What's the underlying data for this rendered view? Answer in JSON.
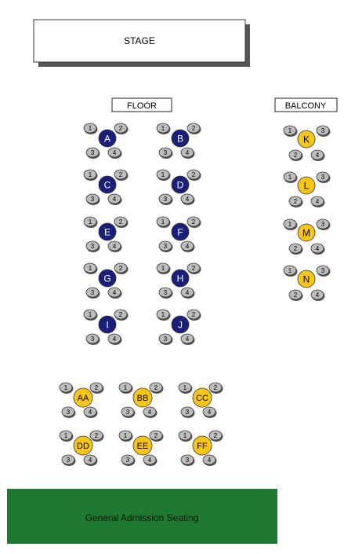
{
  "stage": {
    "label": "STAGE"
  },
  "sections": {
    "floor": "FLOOR",
    "balcony": "BALCONY"
  },
  "general_admission": {
    "label": "General Admission Seating"
  },
  "colors": {
    "floor_table": "#1a1f7a",
    "gold_table": "#f5c51a",
    "seat": "#bdbdbd",
    "general_admission": "#1e7a33",
    "stage_shadow": "#555555"
  },
  "tables": {
    "floor": [
      {
        "label": "A",
        "seats": [
          "1",
          "2",
          "3",
          "4"
        ]
      },
      {
        "label": "B",
        "seats": [
          "1",
          "2",
          "3",
          "4"
        ]
      },
      {
        "label": "C",
        "seats": [
          "1",
          "2",
          "3",
          "4"
        ]
      },
      {
        "label": "D",
        "seats": [
          "1",
          "2",
          "3",
          "4"
        ]
      },
      {
        "label": "E",
        "seats": [
          "1",
          "2",
          "3",
          "4"
        ]
      },
      {
        "label": "F",
        "seats": [
          "1",
          "2",
          "3",
          "4"
        ]
      },
      {
        "label": "G",
        "seats": [
          "1",
          "2",
          "3",
          "4"
        ]
      },
      {
        "label": "H",
        "seats": [
          "1",
          "2",
          "3",
          "4"
        ]
      },
      {
        "label": "I",
        "seats": [
          "1",
          "2",
          "3",
          "4"
        ]
      },
      {
        "label": "J",
        "seats": [
          "1",
          "2",
          "3",
          "4"
        ]
      }
    ],
    "balcony": [
      {
        "label": "K",
        "seats": [
          "1",
          "3",
          "2",
          "4"
        ]
      },
      {
        "label": "L",
        "seats": [
          "1",
          "3",
          "2",
          "4"
        ]
      },
      {
        "label": "M",
        "seats": [
          "1",
          "3",
          "2",
          "4"
        ]
      },
      {
        "label": "N",
        "seats": [
          "1",
          "3",
          "2",
          "4"
        ]
      }
    ],
    "lower": [
      {
        "label": "AA",
        "seats": [
          "1",
          "2",
          "3",
          "4"
        ]
      },
      {
        "label": "BB",
        "seats": [
          "1",
          "2",
          "3",
          "4"
        ]
      },
      {
        "label": "CC",
        "seats": [
          "1",
          "2",
          "3",
          "4"
        ]
      },
      {
        "label": "DD",
        "seats": [
          "1",
          "2",
          "3",
          "4"
        ]
      },
      {
        "label": "EE",
        "seats": [
          "1",
          "2",
          "3",
          "4"
        ]
      },
      {
        "label": "FF",
        "seats": [
          "1",
          "2",
          "3",
          "4"
        ]
      }
    ]
  }
}
